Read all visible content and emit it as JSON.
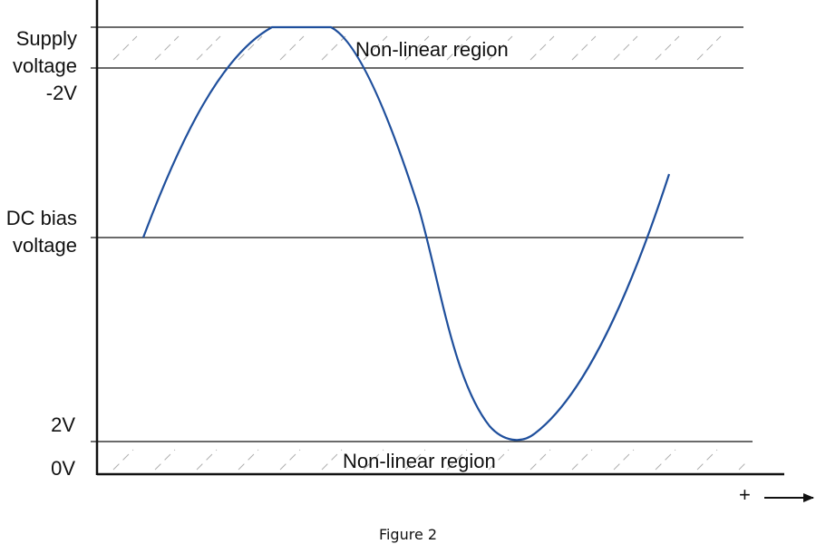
{
  "labels": {
    "supply_line1": "Supply",
    "supply_line2": "voltage",
    "supply_line3": "-2V",
    "dcbias_line1": "DC bias",
    "dcbias_line2": "voltage",
    "two_v": "2V",
    "zero_v": "0V",
    "plus": "+"
  },
  "regions": {
    "upper_label": "Non-linear region",
    "lower_label": "Non-linear region"
  },
  "caption": "Figure 2",
  "colors": {
    "waveform": "#1f4f9c",
    "lines": "#111111",
    "hatch": "#b0b0b0"
  }
}
